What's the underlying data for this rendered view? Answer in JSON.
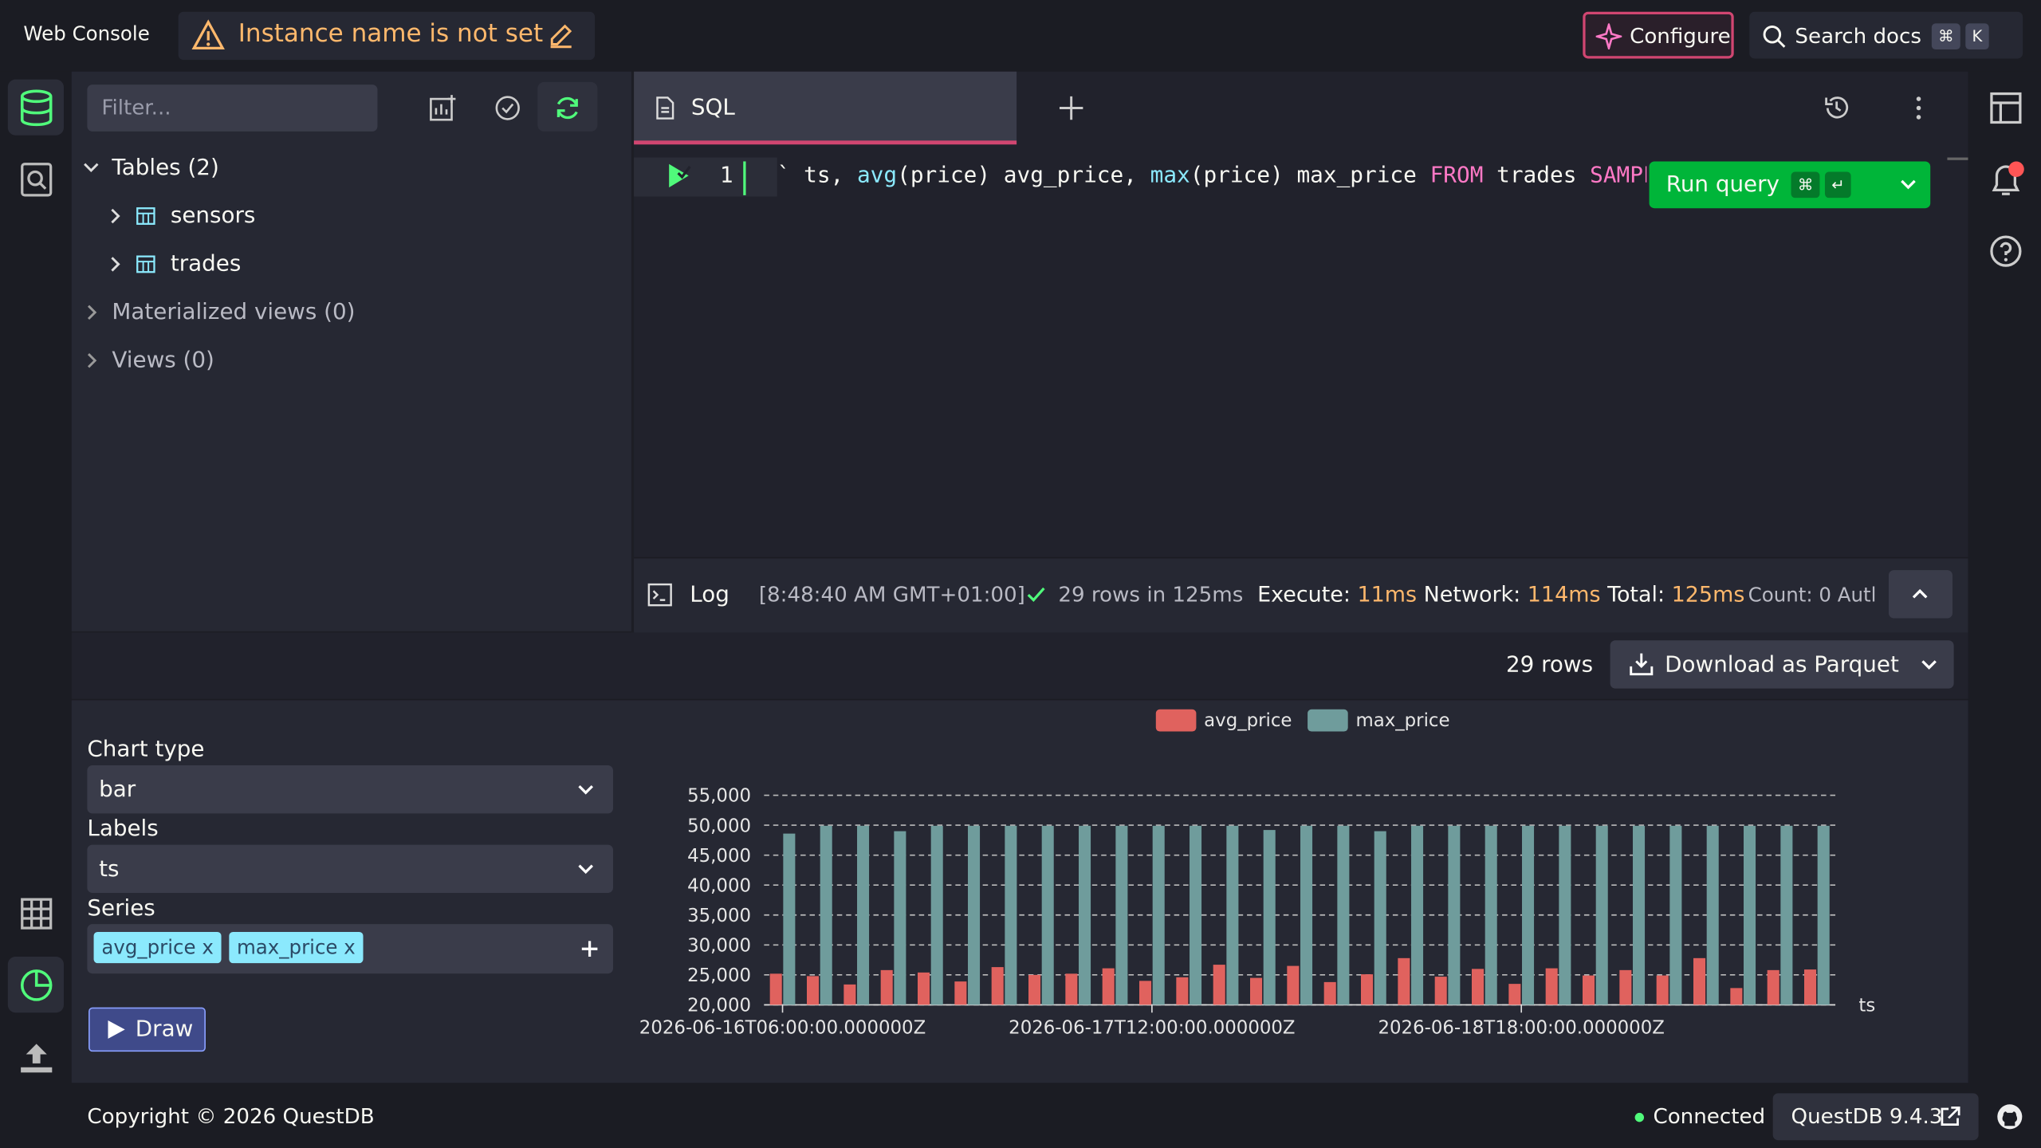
{
  "header": {
    "title": "Web Console",
    "warning": "Instance name is not set",
    "configure": "Configure",
    "search": "Search docs",
    "keys": [
      "⌘",
      "K"
    ]
  },
  "sidebar": {
    "filter_placeholder": "Filter...",
    "tables": "Tables (2)",
    "table_items": [
      "sensors",
      "trades"
    ],
    "materialized_views": "Materialized views (0)",
    "views": "Views (0)"
  },
  "editor": {
    "tab": "SQL",
    "line_number": "1",
    "code": [
      {
        "text": "` ts, ",
        "color": "#f8f8f2"
      },
      {
        "text": "avg",
        "color": "#8be9fd"
      },
      {
        "text": "(price) avg_price, ",
        "color": "#f8f8f2"
      },
      {
        "text": "max",
        "color": "#8be9fd"
      },
      {
        "text": "(price) max_price ",
        "color": "#f8f8f2"
      },
      {
        "text": "FROM",
        "color": "#ff79c6"
      },
      {
        "text": " trades ",
        "color": "#f8f8f2"
      },
      {
        "text": "SAMPLE",
        "color": "#ff79c6"
      }
    ],
    "run_button": "Run query",
    "run_keys": [
      "⌘",
      "↵"
    ]
  },
  "log": {
    "label": "Log",
    "time": "[8:48:40 AM GMT+01:00]",
    "rows": "29 rows in 125ms",
    "execute_label": "Execute:",
    "execute": "11ms",
    "network_label": "Network:",
    "network": "114ms",
    "total_label": "Total:",
    "total": "125ms",
    "count": "Count: 0 Autl"
  },
  "results": {
    "rows": "29 rows",
    "download": "Download as Parquet"
  },
  "chart_settings": {
    "chart_type_label": "Chart type",
    "chart_type": "bar",
    "labels_label": "Labels",
    "labels": "ts",
    "series_label": "Series",
    "series": [
      "avg_price",
      "max_price"
    ],
    "remove": "x",
    "draw": "Draw"
  },
  "chart_data": {
    "type": "bar",
    "x_label": "ts",
    "categories": [
      "2026-06-16T06:00:00.000000Z",
      null,
      null,
      null,
      null,
      null,
      null,
      null,
      null,
      null,
      "2026-06-17T12:00:00.000000Z",
      null,
      null,
      null,
      null,
      null,
      null,
      null,
      null,
      null,
      "2026-06-18T18:00:00.000000Z",
      null,
      null,
      null,
      null,
      null,
      null,
      null,
      null
    ],
    "series": [
      {
        "name": "avg_price",
        "color": "#e0625e",
        "values": [
          25200,
          24800,
          23400,
          25800,
          25400,
          23900,
          26300,
          25000,
          25200,
          26100,
          24000,
          24600,
          26700,
          24500,
          26500,
          23800,
          25100,
          27800,
          24700,
          26000,
          23500,
          26100,
          24900,
          25800,
          24900,
          27800,
          22800,
          25800,
          25900
        ]
      },
      {
        "name": "max_price",
        "color": "#6f9c9c",
        "values": [
          48600,
          49900,
          49900,
          49000,
          49900,
          49900,
          49900,
          49900,
          49900,
          49900,
          49900,
          49900,
          49900,
          49200,
          49900,
          49900,
          49000,
          49900,
          49900,
          49900,
          49900,
          49900,
          49900,
          49900,
          49900,
          49900,
          49900,
          49900,
          49900
        ]
      }
    ],
    "ylim": [
      20000,
      55000
    ],
    "yticks": [
      {
        "value": 20000,
        "label": "20,000"
      },
      {
        "value": 25000,
        "label": "25,000"
      },
      {
        "value": 30000,
        "label": "30,000"
      },
      {
        "value": 35000,
        "label": "35,000"
      },
      {
        "value": 40000,
        "label": "40,000"
      },
      {
        "value": 45000,
        "label": "45,000"
      },
      {
        "value": 50000,
        "label": "50,000"
      },
      {
        "value": 55000,
        "label": "55,000"
      }
    ],
    "grid": true,
    "legend": "top"
  },
  "footer": {
    "copyright": "Copyright © 2026 QuestDB",
    "status": "Connected",
    "version": "QuestDB 9.4.3"
  }
}
